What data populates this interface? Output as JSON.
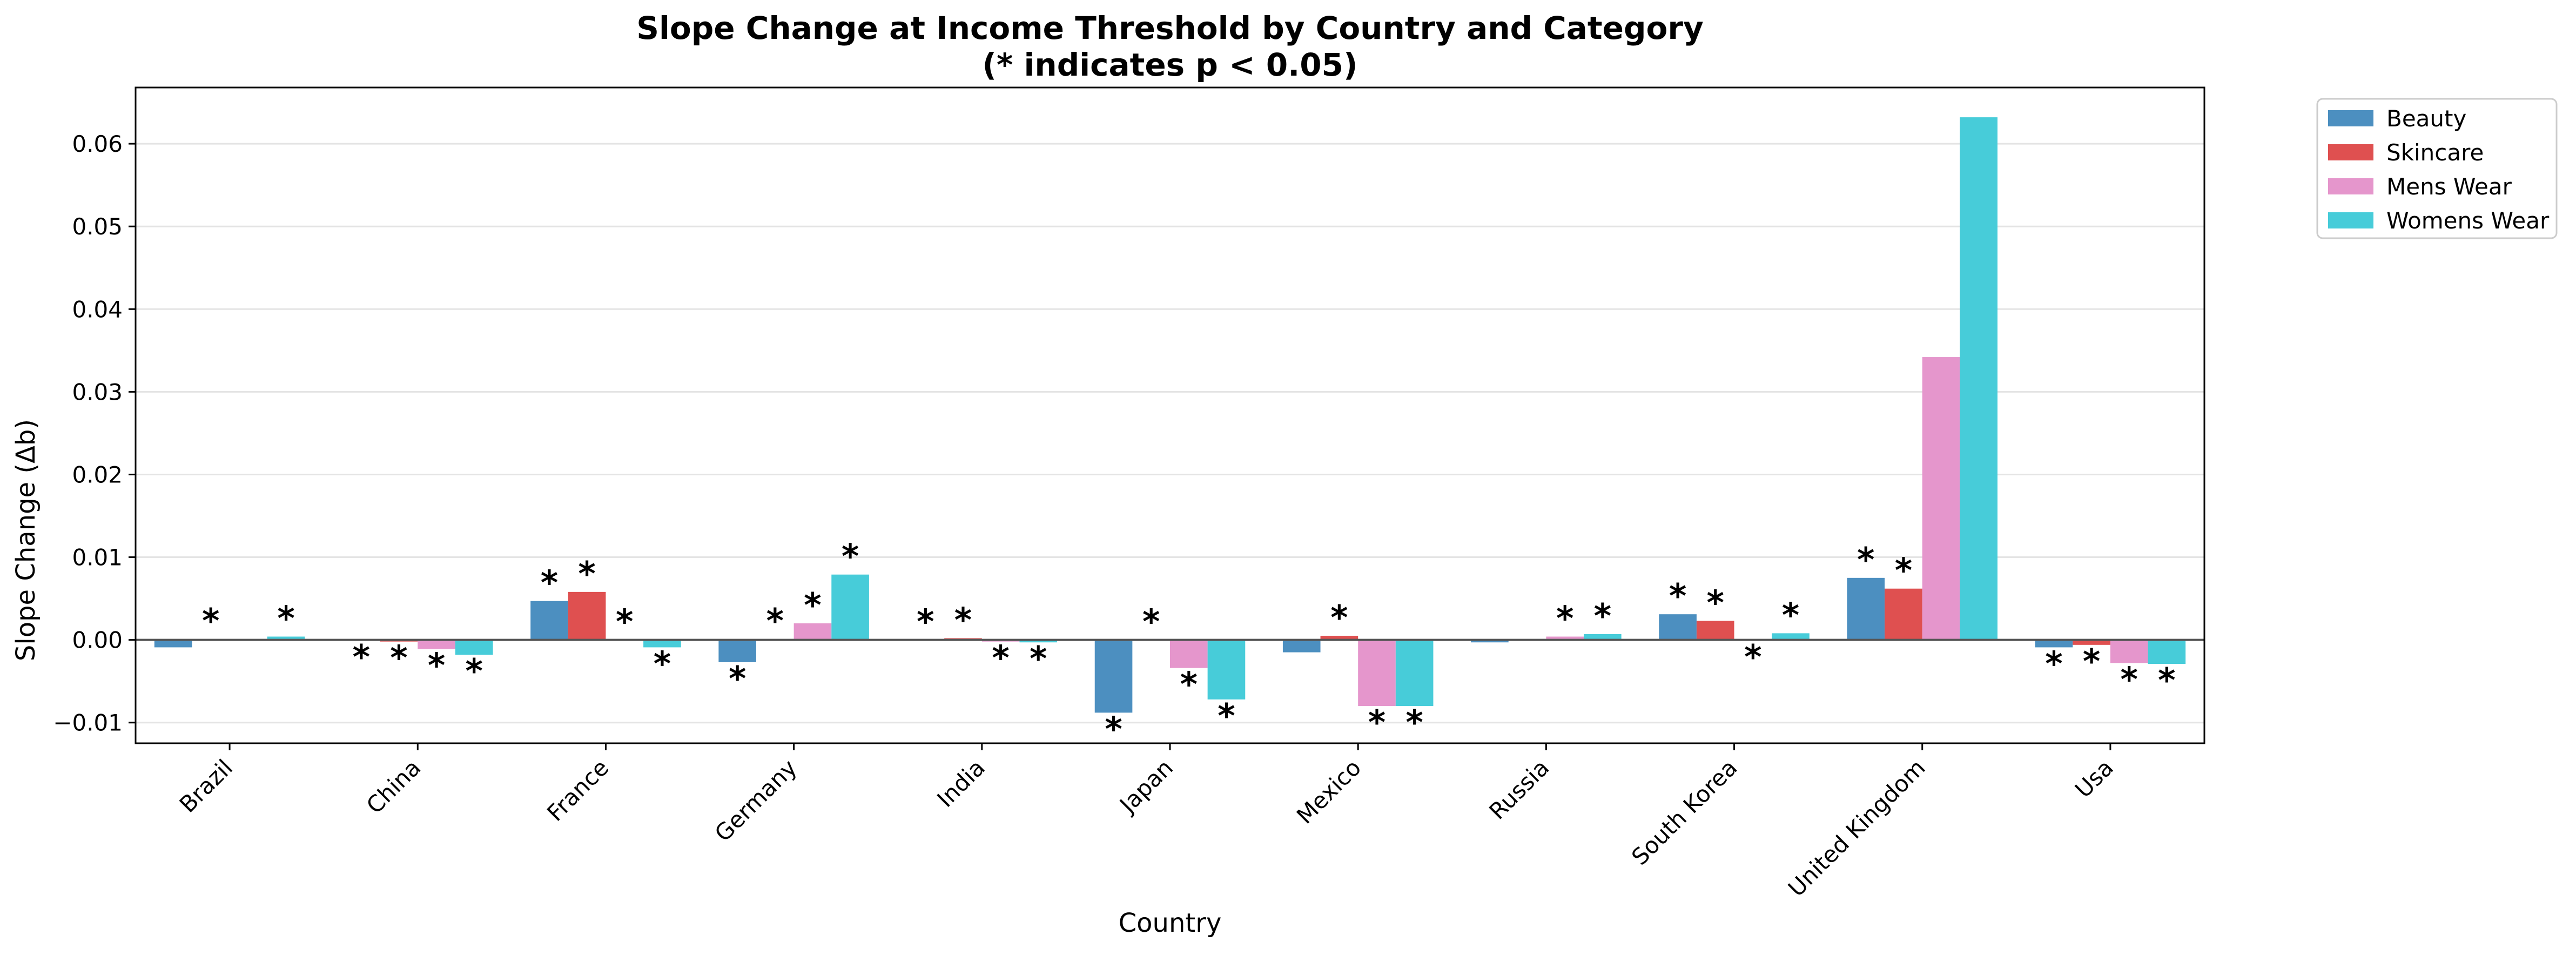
{
  "chart_data": {
    "type": "bar",
    "title": "Slope Change at Income Threshold by Country and Category",
    "subtitle": "(* indicates p < 0.05)",
    "xlabel": "Country",
    "ylabel": "Slope Change (Δb)",
    "categories": [
      "Brazil",
      "China",
      "France",
      "Germany",
      "India",
      "Japan",
      "Mexico",
      "Russia",
      "South Korea",
      "United Kingdom",
      "Usa"
    ],
    "ylim": [
      -0.0125,
      0.0668
    ],
    "yticks": [
      -0.01,
      0.0,
      0.01,
      0.02,
      0.03,
      0.04,
      0.05,
      0.06
    ],
    "ytick_labels": [
      "−0.01",
      "0.00",
      "0.01",
      "0.02",
      "0.03",
      "0.04",
      "0.05",
      "0.06"
    ],
    "grid": "horizontal",
    "legend_position": "outside-top-right",
    "significance_marker": "*",
    "series": [
      {
        "name": "Beauty",
        "color": "#4c8fc0",
        "values": [
          -0.0009,
          -0.0001,
          0.0047,
          -0.0027,
          0.0,
          -0.0088,
          -0.0015,
          -0.0003,
          0.0031,
          0.0075,
          -0.0009
        ],
        "significant": [
          false,
          true,
          true,
          true,
          true,
          true,
          false,
          false,
          true,
          true,
          true
        ]
      },
      {
        "name": "Skincare",
        "color": "#df5050",
        "values": [
          0.0001,
          -0.0002,
          0.0058,
          0.0001,
          0.0002,
          0.0,
          0.0005,
          0.0001,
          0.0023,
          0.0062,
          -0.0006
        ],
        "significant": [
          true,
          true,
          true,
          true,
          true,
          true,
          true,
          false,
          true,
          true,
          true
        ]
      },
      {
        "name": "Mens Wear",
        "color": "#e596cc",
        "values": [
          0.0,
          -0.0011,
          0.0,
          0.002,
          -0.0002,
          -0.0034,
          -0.008,
          0.0004,
          -0.0001,
          0.0342,
          -0.0028
        ],
        "significant": [
          false,
          true,
          true,
          true,
          true,
          true,
          true,
          true,
          true,
          false,
          true
        ]
      },
      {
        "name": "Womens Wear",
        "color": "#47ccd9",
        "values": [
          0.0004,
          -0.0018,
          -0.0009,
          0.0079,
          -0.0003,
          -0.0072,
          -0.008,
          0.0007,
          0.0008,
          0.0632,
          -0.0029
        ],
        "significant": [
          true,
          true,
          true,
          true,
          true,
          true,
          true,
          true,
          true,
          false,
          true
        ]
      }
    ]
  }
}
